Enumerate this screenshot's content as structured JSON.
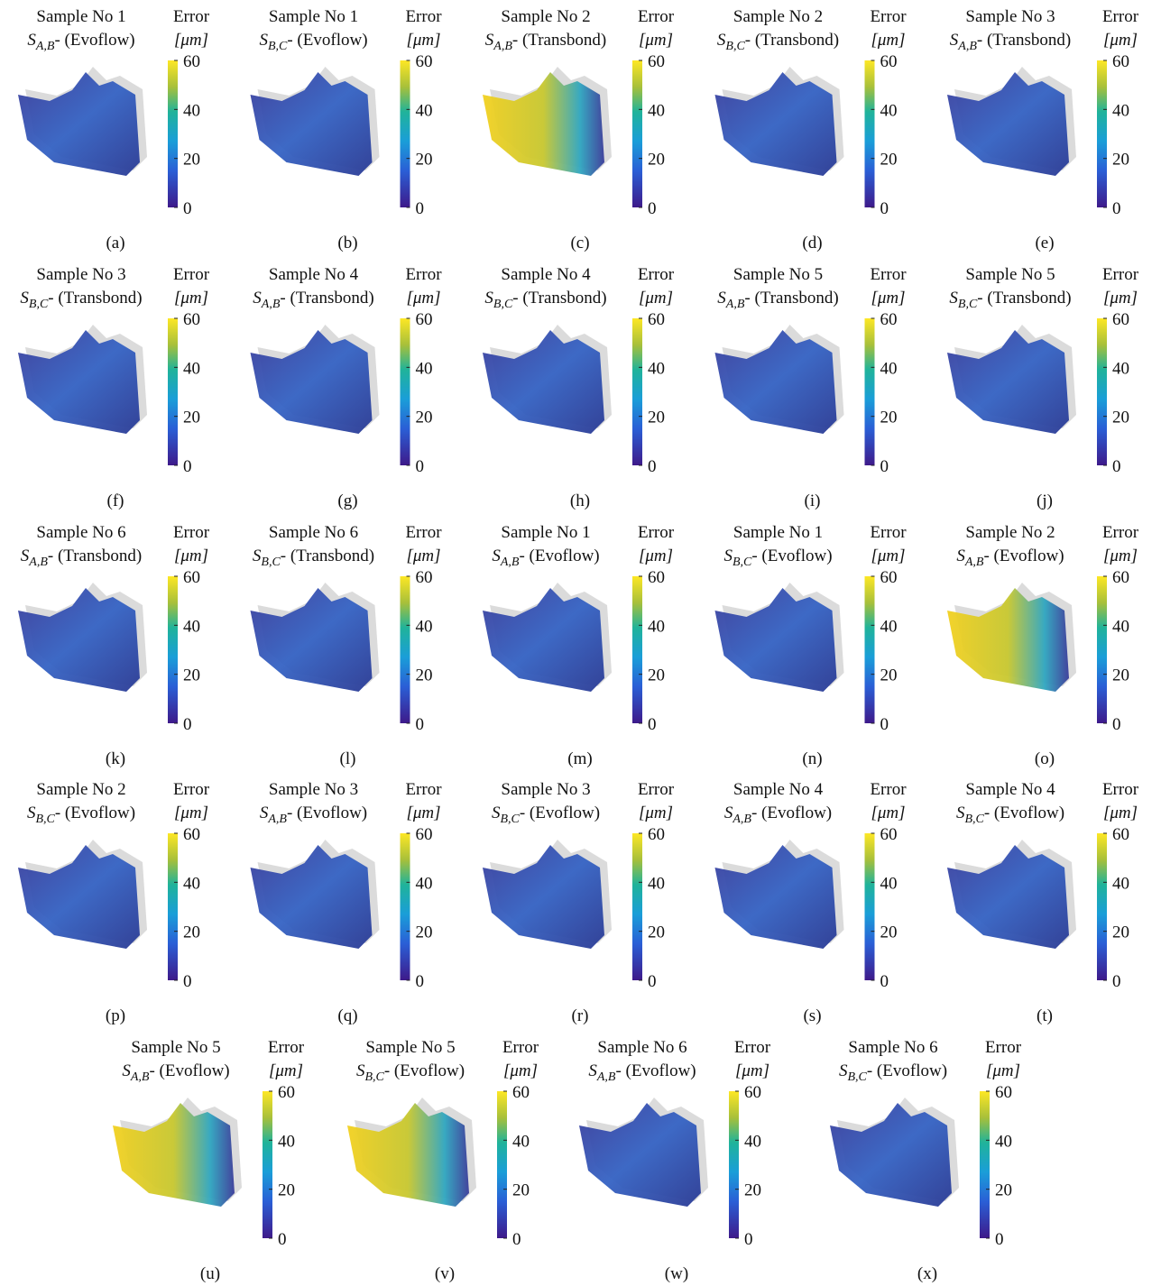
{
  "figure": {
    "colorbar_title": "Error",
    "colorbar_unit": "[μm]",
    "colorbar_lim": [
      0,
      60
    ],
    "colorbar_ticks": [
      0,
      20,
      40,
      60
    ],
    "panels": [
      {
        "title": "Sample No 1",
        "symbol": "S",
        "subscript": "A,B",
        "suffix": "- (Evoflow)",
        "label": "(a)"
      },
      {
        "title": "Sample No 1",
        "symbol": "S",
        "subscript": "B,C",
        "suffix": "- (Evoflow)",
        "label": "(b)"
      },
      {
        "title": "Sample No 2",
        "symbol": "S",
        "subscript": "A,B",
        "suffix": "- (Transbond)",
        "label": "(c)"
      },
      {
        "title": "Sample No 2",
        "symbol": "S",
        "subscript": "B,C",
        "suffix": "- (Transbond)",
        "label": "(d)"
      },
      {
        "title": "Sample No 3",
        "symbol": "S",
        "subscript": "A,B",
        "suffix": "- (Transbond)",
        "label": "(e)"
      },
      {
        "title": "Sample No 3",
        "symbol": "S",
        "subscript": "B,C",
        "suffix": "- (Transbond)",
        "label": "(f)"
      },
      {
        "title": "Sample No 4",
        "symbol": "S",
        "subscript": "A,B",
        "suffix": "- (Transbond)",
        "label": "(g)"
      },
      {
        "title": "Sample No 4",
        "symbol": "S",
        "subscript": "B,C",
        "suffix": "- (Transbond)",
        "label": "(h)"
      },
      {
        "title": "Sample No 5",
        "symbol": "S",
        "subscript": "A,B",
        "suffix": "- (Transbond)",
        "label": "(i)"
      },
      {
        "title": "Sample No 5",
        "symbol": "S",
        "subscript": "B,C",
        "suffix": "- (Transbond)",
        "label": "(j)"
      },
      {
        "title": "Sample No 6",
        "symbol": "S",
        "subscript": "A,B",
        "suffix": "- (Transbond)",
        "label": "(k)"
      },
      {
        "title": "Sample No 6",
        "symbol": "S",
        "subscript": "B,C",
        "suffix": "- (Transbond)",
        "label": "(l)"
      },
      {
        "title": "Sample No 1",
        "symbol": "S",
        "subscript": "A,B",
        "suffix": "- (Evoflow)",
        "label": "(m)"
      },
      {
        "title": "Sample No 1",
        "symbol": "S",
        "subscript": "B,C",
        "suffix": "- (Evoflow)",
        "label": "(n)"
      },
      {
        "title": "Sample No 2",
        "symbol": "S",
        "subscript": "A,B",
        "suffix": "- (Evoflow)",
        "label": "(o)"
      },
      {
        "title": "Sample No 2",
        "symbol": "S",
        "subscript": "B,C",
        "suffix": "- (Evoflow)",
        "label": "(p)"
      },
      {
        "title": "Sample No 3",
        "symbol": "S",
        "subscript": "A,B",
        "suffix": "- (Evoflow)",
        "label": "(q)"
      },
      {
        "title": "Sample No 3",
        "symbol": "S",
        "subscript": "B,C",
        "suffix": "- (Evoflow)",
        "label": "(r)"
      },
      {
        "title": "Sample No 4",
        "symbol": "S",
        "subscript": "A,B",
        "suffix": "- (Evoflow)",
        "label": "(s)"
      },
      {
        "title": "Sample No 4",
        "symbol": "S",
        "subscript": "B,C",
        "suffix": "- (Evoflow)",
        "label": "(t)"
      },
      {
        "title": "Sample No 5",
        "symbol": "S",
        "subscript": "A,B",
        "suffix": "- (Evoflow)",
        "label": "(u)"
      },
      {
        "title": "Sample No 5",
        "symbol": "S",
        "subscript": "B,C",
        "suffix": "- (Evoflow)",
        "label": "(v)"
      },
      {
        "title": "Sample No 6",
        "symbol": "S",
        "subscript": "A,B",
        "suffix": "- (Evoflow)",
        "label": "(w)"
      },
      {
        "title": "Sample No 6",
        "symbol": "S",
        "subscript": "B,C",
        "suffix": "- (Evoflow)",
        "label": "(x)"
      }
    ]
  }
}
